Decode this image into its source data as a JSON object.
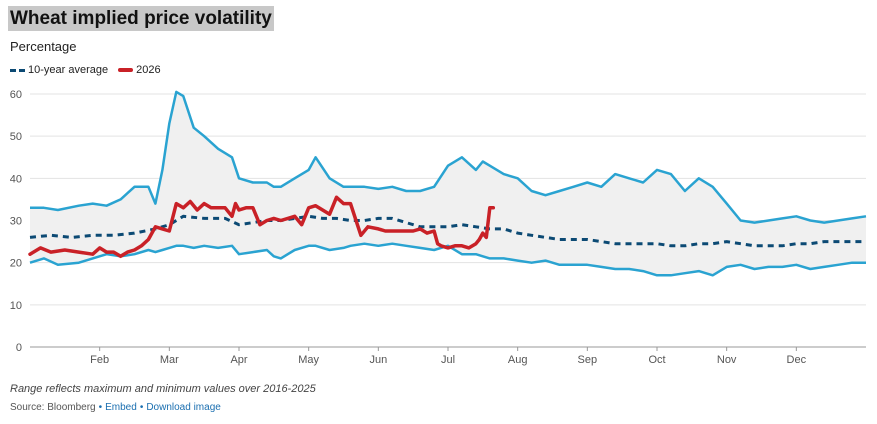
{
  "chart_data": {
    "type": "line",
    "title": "Wheat implied price volatility",
    "subtitle": "Percentage",
    "ylim": [
      0,
      60
    ],
    "yticks": [
      0,
      10,
      20,
      30,
      40,
      50,
      60
    ],
    "xlim": [
      0,
      12
    ],
    "x_ticks": [
      {
        "label": "Feb",
        "x": 1
      },
      {
        "label": "Mar",
        "x": 2
      },
      {
        "label": "Apr",
        "x": 3
      },
      {
        "label": "May",
        "x": 4
      },
      {
        "label": "Jun",
        "x": 5
      },
      {
        "label": "Jul",
        "x": 6
      },
      {
        "label": "Aug",
        "x": 7
      },
      {
        "label": "Sep",
        "x": 8
      },
      {
        "label": "Oct",
        "x": 9
      },
      {
        "label": "Nov",
        "x": 10
      },
      {
        "label": "Dec",
        "x": 11
      }
    ],
    "grid": true,
    "band": {
      "x": [
        0,
        0.2,
        0.4,
        0.7,
        0.9,
        1.1,
        1.3,
        1.5,
        1.7,
        1.8,
        1.9,
        2.0,
        2.1,
        2.2,
        2.35,
        2.5,
        2.7,
        2.9,
        3.0,
        3.2,
        3.4,
        3.5,
        3.6,
        3.8,
        4.0,
        4.1,
        4.3,
        4.5,
        4.6,
        4.8,
        5.0,
        5.2,
        5.4,
        5.6,
        5.8,
        6.0,
        6.2,
        6.4,
        6.5,
        6.6,
        6.8,
        7.0,
        7.2,
        7.4,
        7.6,
        7.8,
        8.0,
        8.2,
        8.4,
        8.6,
        8.8,
        9.0,
        9.2,
        9.4,
        9.6,
        9.8,
        10.0,
        10.2,
        10.4,
        10.6,
        10.8,
        11.0,
        11.2,
        11.4,
        11.6,
        11.8,
        12.0
      ],
      "max": [
        33,
        33,
        32.5,
        33.5,
        34,
        33.5,
        35,
        38,
        38,
        34,
        42,
        53,
        60.5,
        59.5,
        52,
        50,
        47,
        45,
        40,
        39,
        39,
        38,
        38,
        40,
        42,
        45,
        40,
        38,
        38,
        38,
        37.5,
        38,
        37,
        37,
        38,
        43,
        45,
        42,
        44,
        43,
        41,
        40,
        37,
        36,
        37,
        38,
        39,
        38,
        41,
        40,
        39,
        42,
        41,
        37,
        40,
        38,
        34,
        30,
        29.5,
        30,
        30.5,
        31,
        30,
        29.5,
        30,
        30.5,
        31
      ],
      "min": [
        20,
        21,
        19.5,
        20,
        21,
        22,
        21.5,
        22,
        23,
        22.5,
        23,
        23.5,
        24,
        24,
        23.5,
        24,
        23.5,
        24,
        22,
        22.5,
        23,
        21.5,
        21,
        23,
        24,
        24,
        23,
        23.5,
        24,
        24.5,
        24,
        24.5,
        24,
        23.5,
        23,
        24,
        22,
        22,
        21.5,
        21,
        21,
        20.5,
        20,
        20.5,
        19.5,
        19.5,
        19.5,
        19,
        18.5,
        18.5,
        18,
        17,
        17,
        17.5,
        18,
        17,
        19,
        19.5,
        18.5,
        19,
        19,
        19.5,
        18.5,
        19,
        19.5,
        20,
        20
      ]
    },
    "series": [
      {
        "name": "10-year average",
        "color": "#0c4a74",
        "style": "dashed",
        "x": [
          0,
          0.3,
          0.6,
          0.9,
          1.2,
          1.5,
          1.8,
          2.0,
          2.2,
          2.5,
          2.8,
          3.0,
          3.2,
          3.4,
          3.6,
          3.8,
          4.0,
          4.2,
          4.4,
          4.6,
          4.8,
          5.0,
          5.2,
          5.4,
          5.6,
          5.8,
          6.0,
          6.2,
          6.4,
          6.6,
          6.8,
          7.0,
          7.2,
          7.4,
          7.6,
          7.8,
          8.0,
          8.2,
          8.4,
          8.6,
          8.8,
          9.0,
          9.2,
          9.4,
          9.6,
          9.8,
          10.0,
          10.2,
          10.4,
          10.6,
          10.8,
          11.0,
          11.2,
          11.4,
          11.6,
          11.8,
          12.0
        ],
        "values": [
          26,
          26.5,
          26,
          26.5,
          26.5,
          27,
          28,
          29,
          31,
          30.5,
          30.5,
          29,
          29.5,
          30,
          30,
          30.5,
          31,
          30.5,
          30.5,
          30,
          30,
          30.5,
          30.5,
          29.5,
          28.5,
          28.5,
          28.5,
          29,
          28.5,
          28,
          28,
          27,
          26.5,
          26,
          25.5,
          25.5,
          25.5,
          25,
          24.5,
          24.5,
          24.5,
          24.5,
          24,
          24,
          24.5,
          24.5,
          25,
          24.5,
          24,
          24,
          24,
          24.5,
          24.5,
          25,
          25,
          25,
          25
        ]
      },
      {
        "name": "2026",
        "color": "#c92127",
        "style": "solid",
        "x": [
          0,
          0.15,
          0.3,
          0.5,
          0.7,
          0.9,
          1.0,
          1.1,
          1.2,
          1.3,
          1.4,
          1.5,
          1.6,
          1.7,
          1.8,
          1.9,
          2.0,
          2.1,
          2.2,
          2.3,
          2.4,
          2.5,
          2.6,
          2.7,
          2.8,
          2.9,
          2.95,
          3.0,
          3.1,
          3.2,
          3.3,
          3.4,
          3.5,
          3.6,
          3.7,
          3.8,
          3.9,
          4.0,
          4.1,
          4.2,
          4.3,
          4.4,
          4.5,
          4.6,
          4.7,
          4.75,
          4.85,
          5.0,
          5.1,
          5.2,
          5.3,
          5.4,
          5.5,
          5.6,
          5.7,
          5.8,
          5.85,
          5.9,
          6.0,
          6.1,
          6.2,
          6.3,
          6.4,
          6.45,
          6.5,
          6.55,
          6.6,
          6.65
        ],
        "values": [
          22,
          23.5,
          22.5,
          23,
          22.5,
          22,
          23.5,
          22.5,
          22.5,
          21.5,
          22.5,
          23,
          24,
          25.5,
          28.5,
          28,
          27.5,
          34,
          33,
          34.5,
          32.5,
          34,
          33,
          33,
          33,
          31,
          34,
          32.5,
          33,
          33,
          29,
          30,
          30.5,
          30,
          30.5,
          31,
          29,
          33,
          33.5,
          32.5,
          31.5,
          35.5,
          34,
          34,
          29,
          26.5,
          28.5,
          28,
          27.5,
          27.5,
          27.5,
          27.5,
          27.5,
          28,
          27,
          27.5,
          24.5,
          24,
          23.5,
          24,
          24,
          23.5,
          24.5,
          25.5,
          27,
          26,
          33,
          33
        ]
      }
    ],
    "legend": [
      "10-year average",
      "2026"
    ],
    "legend_position": "top-left",
    "band_color": "#f0f0f0",
    "range_line_color": "#2aa3d1"
  },
  "note": "Range reflects maximum and minimum values over 2016-2025",
  "footer": {
    "source": "Source: Bloomberg",
    "embed": "Embed",
    "download": "Download image"
  }
}
